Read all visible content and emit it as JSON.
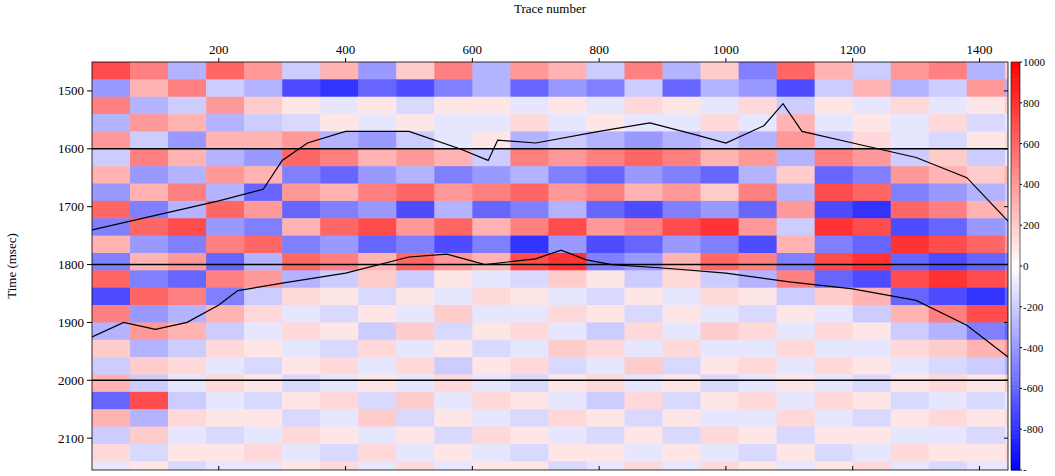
{
  "chart_data": {
    "type": "heatmap",
    "x_label": "Trace number",
    "y_label": "Time (msec)",
    "xlim": [
      0,
      1445
    ],
    "ylim": [
      2155,
      1450
    ],
    "xticks": [
      200,
      400,
      600,
      800,
      1000,
      1200,
      1400
    ],
    "yticks": [
      1500,
      1600,
      1700,
      1800,
      1900,
      2000,
      2100
    ],
    "colorbar": {
      "range": [
        -1000,
        1000
      ],
      "ticks": [
        1000,
        800,
        600,
        400,
        200,
        0,
        -200,
        -400,
        -600,
        -800,
        {
          "value": -1000,
          "label": "-"
        }
      ]
    },
    "x": [
      30,
      90,
      150,
      210,
      270,
      330,
      390,
      450,
      510,
      570,
      630,
      690,
      750,
      810,
      870,
      930,
      990,
      1050,
      1110,
      1170,
      1230,
      1290,
      1350,
      1410,
      1470
    ],
    "y": [
      1465,
      1495,
      1525,
      1555,
      1585,
      1615,
      1645,
      1675,
      1705,
      1735,
      1765,
      1795,
      1825,
      1855,
      1885,
      1915,
      1945,
      1975,
      2005,
      2035,
      2065,
      2095,
      2125,
      2155
    ],
    "z": [
      [
        700,
        500,
        -300,
        600,
        400,
        -200,
        300,
        -400,
        200,
        500,
        -300,
        400,
        300,
        -200,
        500,
        -300,
        200,
        -500,
        600,
        300,
        -200,
        400,
        500,
        -300,
        200
      ],
      [
        -400,
        300,
        500,
        -200,
        -300,
        -700,
        -800,
        -600,
        -700,
        -500,
        -300,
        -600,
        -400,
        -500,
        -200,
        -600,
        -300,
        -400,
        -700,
        -200,
        300,
        -300,
        -200,
        400,
        -300
      ],
      [
        500,
        -300,
        -200,
        400,
        200,
        100,
        -100,
        100,
        -150,
        100,
        100,
        -100,
        100,
        -100,
        150,
        100,
        -100,
        150,
        -200,
        100,
        -100,
        150,
        -100,
        100,
        200
      ],
      [
        -300,
        400,
        300,
        -300,
        -200,
        -150,
        100,
        -100,
        100,
        -100,
        -100,
        150,
        -100,
        100,
        -100,
        -100,
        150,
        -100,
        300,
        -100,
        100,
        -100,
        150,
        -150,
        -100
      ],
      [
        400,
        -200,
        -400,
        300,
        300,
        400,
        -300,
        -400,
        -200,
        -100,
        100,
        -300,
        -200,
        -300,
        -400,
        -300,
        -200,
        -300,
        400,
        -200,
        150,
        -100,
        -150,
        100,
        150
      ],
      [
        -200,
        500,
        300,
        -300,
        -400,
        600,
        500,
        300,
        400,
        300,
        -200,
        500,
        400,
        500,
        600,
        500,
        300,
        400,
        -300,
        500,
        400,
        -200,
        200,
        -200,
        -100
      ],
      [
        300,
        -400,
        -300,
        400,
        300,
        -500,
        -600,
        -400,
        -300,
        -500,
        -400,
        -300,
        -500,
        -600,
        -400,
        -500,
        -600,
        -300,
        200,
        -600,
        -500,
        400,
        300,
        200,
        300
      ],
      [
        -400,
        300,
        500,
        -300,
        -600,
        400,
        300,
        500,
        600,
        400,
        500,
        600,
        400,
        500,
        300,
        400,
        200,
        500,
        -300,
        700,
        600,
        -500,
        -400,
        -300,
        -200
      ],
      [
        600,
        -500,
        -300,
        600,
        400,
        -600,
        -500,
        -400,
        -700,
        -300,
        -600,
        -500,
        -300,
        -600,
        -700,
        -500,
        -400,
        -600,
        400,
        -700,
        -800,
        600,
        500,
        300,
        200
      ],
      [
        -500,
        600,
        700,
        -400,
        -500,
        300,
        600,
        700,
        400,
        600,
        300,
        500,
        700,
        400,
        500,
        700,
        800,
        400,
        -200,
        800,
        700,
        -700,
        -600,
        -400,
        -300
      ],
      [
        300,
        -400,
        -500,
        500,
        600,
        -500,
        -400,
        -600,
        -500,
        -700,
        -500,
        -800,
        -400,
        -700,
        -600,
        -400,
        -500,
        -700,
        300,
        -500,
        -600,
        800,
        700,
        600,
        400
      ],
      [
        -500,
        300,
        400,
        -600,
        -300,
        600,
        500,
        300,
        600,
        400,
        300,
        700,
        800,
        -500,
        -400,
        300,
        600,
        500,
        -500,
        700,
        800,
        -600,
        -700,
        -600,
        -500
      ],
      [
        600,
        -500,
        -600,
        500,
        400,
        -300,
        -200,
        200,
        -200,
        100,
        -100,
        -150,
        200,
        100,
        -200,
        150,
        -200,
        -300,
        500,
        -600,
        -700,
        700,
        800,
        700,
        600
      ],
      [
        -700,
        600,
        500,
        -500,
        -200,
        150,
        100,
        -150,
        100,
        -100,
        150,
        100,
        -100,
        -150,
        100,
        -100,
        150,
        100,
        -200,
        200,
        300,
        -600,
        -700,
        -800,
        -600
      ],
      [
        500,
        -400,
        -300,
        300,
        150,
        -100,
        -150,
        100,
        -100,
        200,
        -100,
        -100,
        150,
        100,
        -150,
        100,
        -100,
        -150,
        100,
        -100,
        -200,
        300,
        500,
        700,
        700
      ],
      [
        -300,
        400,
        300,
        -200,
        -100,
        150,
        100,
        -200,
        200,
        -150,
        100,
        150,
        -100,
        -200,
        150,
        -100,
        200,
        150,
        -100,
        150,
        100,
        -200,
        -300,
        -500,
        -600
      ],
      [
        200,
        -300,
        -200,
        150,
        100,
        -100,
        -150,
        150,
        -100,
        100,
        -150,
        -100,
        200,
        150,
        -100,
        150,
        -100,
        -100,
        150,
        -100,
        -100,
        150,
        200,
        300,
        400
      ],
      [
        -200,
        200,
        150,
        -100,
        -150,
        100,
        150,
        -100,
        150,
        -200,
        100,
        150,
        -150,
        -100,
        200,
        -150,
        100,
        150,
        -100,
        150,
        100,
        -100,
        -150,
        -200,
        -300
      ],
      [
        300,
        -200,
        -100,
        150,
        100,
        -150,
        -100,
        100,
        -100,
        150,
        -100,
        -150,
        100,
        150,
        -100,
        100,
        -150,
        -100,
        100,
        -100,
        -150,
        100,
        150,
        100,
        200
      ],
      [
        -600,
        700,
        -200,
        -100,
        -150,
        100,
        150,
        -150,
        200,
        -100,
        150,
        100,
        -100,
        -200,
        150,
        -150,
        100,
        150,
        -100,
        150,
        100,
        -150,
        -100,
        -150,
        -100
      ],
      [
        300,
        -300,
        150,
        100,
        100,
        -150,
        -100,
        200,
        -150,
        100,
        -100,
        -150,
        150,
        100,
        -150,
        100,
        -100,
        -100,
        150,
        -100,
        -150,
        100,
        150,
        100,
        150
      ],
      [
        -200,
        200,
        -100,
        -150,
        -100,
        150,
        100,
        -100,
        100,
        -150,
        150,
        100,
        -100,
        -150,
        100,
        -150,
        150,
        100,
        -150,
        100,
        100,
        -100,
        -100,
        -150,
        -100
      ],
      [
        150,
        -150,
        100,
        100,
        150,
        -100,
        -150,
        150,
        -100,
        100,
        -100,
        -150,
        100,
        100,
        -100,
        100,
        -100,
        -150,
        100,
        -150,
        -100,
        150,
        100,
        100,
        150
      ],
      [
        -100,
        100,
        -150,
        -100,
        -100,
        100,
        150,
        -100,
        150,
        -100,
        100,
        100,
        -150,
        -100,
        150,
        -100,
        150,
        100,
        -100,
        100,
        150,
        -100,
        -150,
        -100,
        -100
      ]
    ],
    "series": [
      {
        "type": "line",
        "color": "#000000",
        "x": [
          0,
          100,
          200,
          270,
          300,
          340,
          400,
          500,
          580,
          625,
          640,
          700,
          800,
          880,
          950,
          1000,
          1060,
          1090,
          1120,
          1200,
          1300,
          1380,
          1445
        ],
        "values": [
          1740,
          1715,
          1690,
          1670,
          1620,
          1590,
          1570,
          1570,
          1600,
          1620,
          1585,
          1590,
          1570,
          1555,
          1575,
          1590,
          1560,
          1522,
          1570,
          1590,
          1615,
          1650,
          1725
        ]
      },
      {
        "type": "line",
        "color": "#000000",
        "x": [
          0,
          50,
          100,
          150,
          200,
          230,
          300,
          400,
          500,
          560,
          620,
          700,
          740,
          780,
          820,
          900,
          1000,
          1100,
          1200,
          1300,
          1380,
          1445
        ],
        "values": [
          1925,
          1900,
          1912,
          1900,
          1870,
          1845,
          1832,
          1815,
          1787,
          1782,
          1800,
          1790,
          1775,
          1792,
          1800,
          1806,
          1815,
          1830,
          1842,
          1862,
          1905,
          1960
        ]
      }
    ],
    "reference_lines": [
      1600,
      1800,
      2000
    ]
  }
}
